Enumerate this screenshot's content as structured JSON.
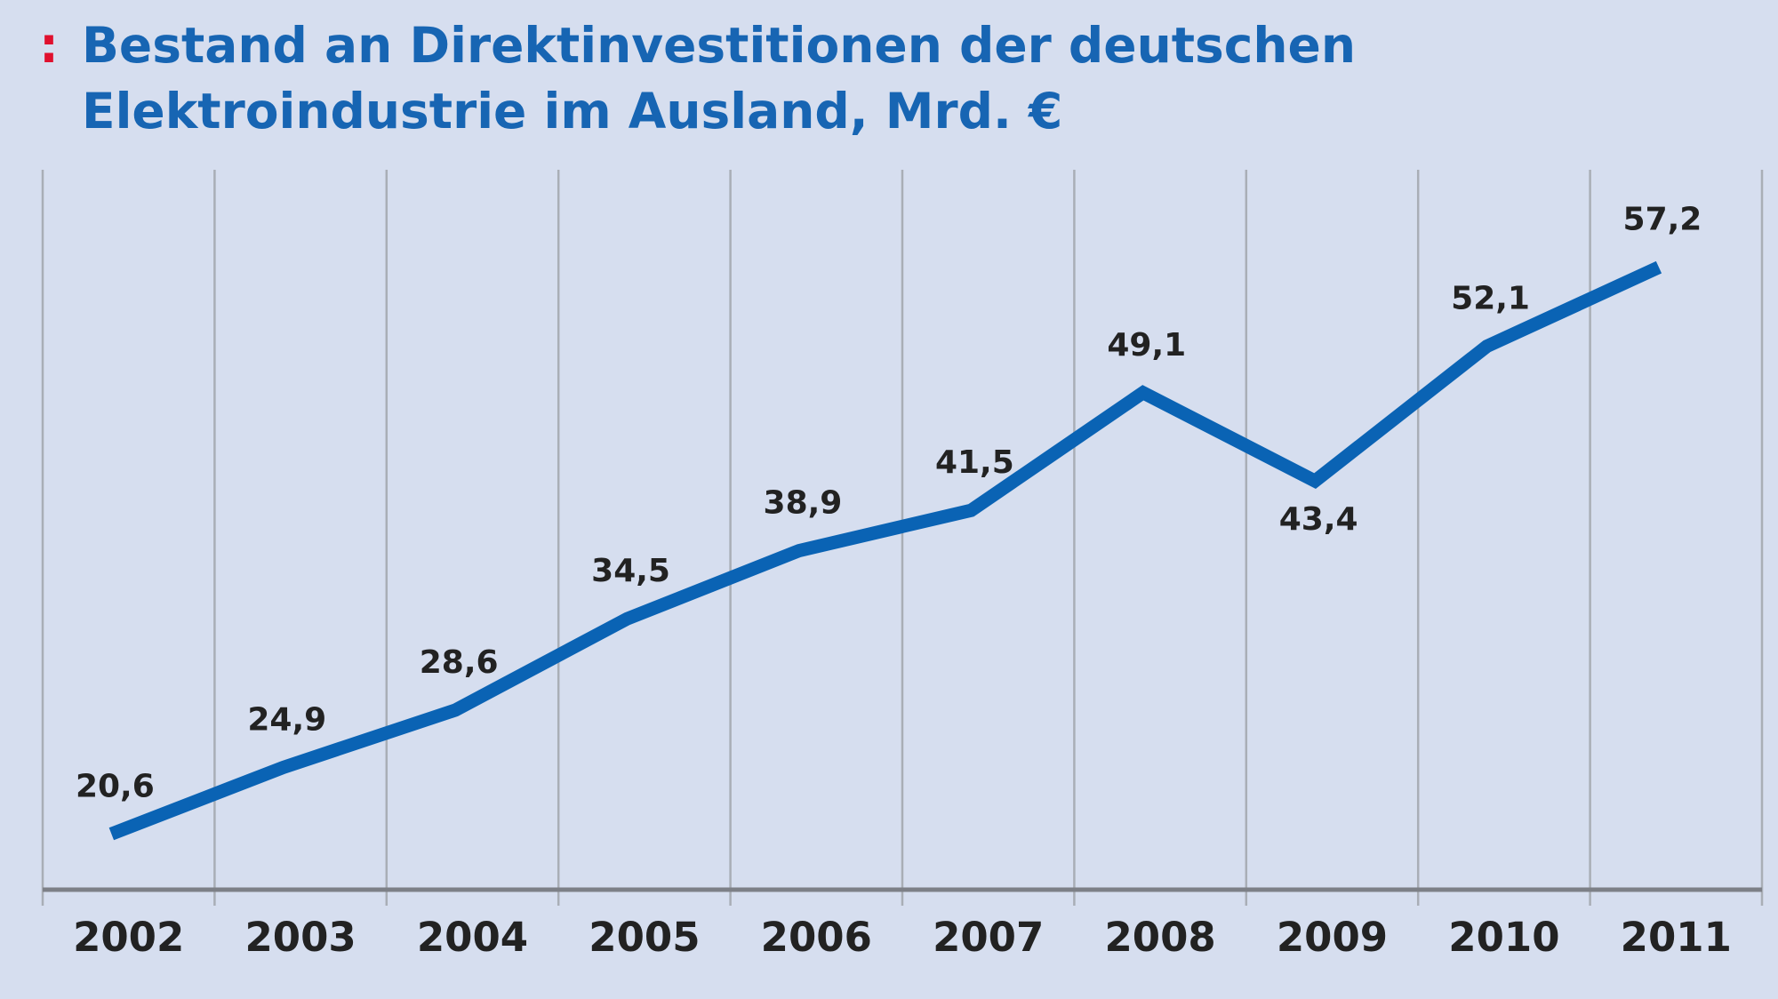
{
  "chart_data": {
    "type": "line",
    "title_prefix": ":",
    "title": "Bestand an Direktinvestitionen der deutschen Elektroindustrie im Ausland, Mrd. €",
    "categories": [
      "2002",
      "2003",
      "2004",
      "2005",
      "2006",
      "2007",
      "2008",
      "2009",
      "2010",
      "2011"
    ],
    "series": [
      {
        "color": "#0a63b4",
        "values": [
          20.6,
          24.9,
          28.6,
          34.5,
          38.9,
          41.5,
          49.1,
          43.4,
          52.1,
          57.2
        ],
        "value_labels": [
          "20,6",
          "24,9",
          "28,6",
          "34,5",
          "38,9",
          "41,5",
          "49,1",
          "43,4",
          "52,1",
          "57,2"
        ]
      }
    ],
    "ylim": [
      17,
      63.5
    ]
  }
}
